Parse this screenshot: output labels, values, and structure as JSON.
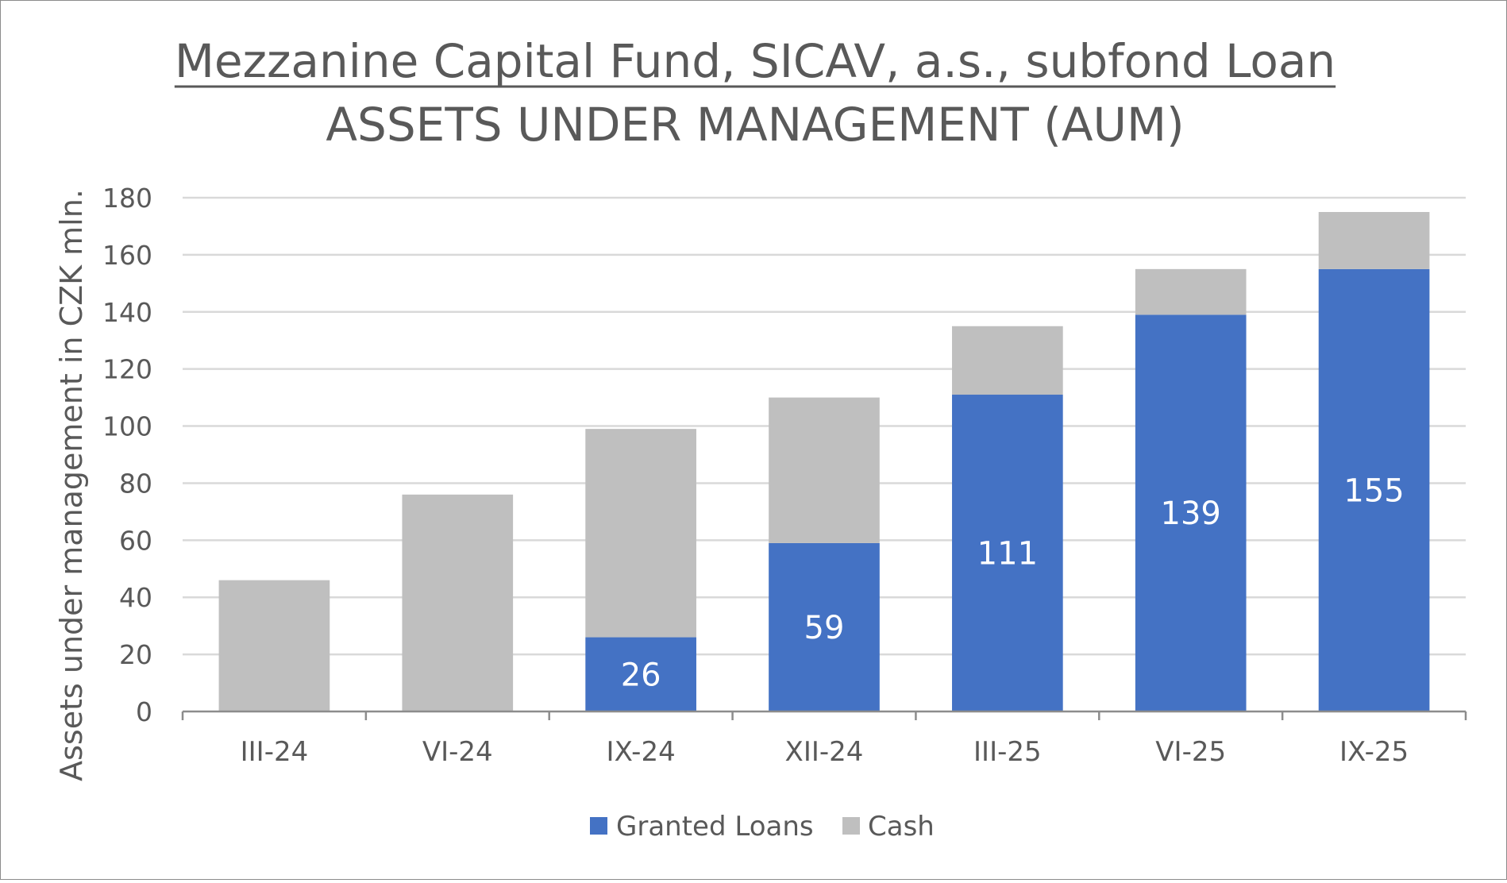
{
  "chart_data": {
    "type": "bar",
    "stacked": true,
    "title": "Mezzanine Capital Fund, SICAV, a.s., subfond Loan",
    "subtitle": "ASSETS UNDER MANAGEMENT (AUM)",
    "ylabel": "Assets under management in CZK mln.",
    "xlabel": "",
    "ylim": [
      0,
      180
    ],
    "yticks": [
      0,
      20,
      40,
      60,
      80,
      100,
      120,
      140,
      160,
      180
    ],
    "grid": true,
    "legend": "bottom",
    "categories": [
      "III-24",
      "VI-24",
      "IX-24",
      "XII-24",
      "III-25",
      "VI-25",
      "IX-25"
    ],
    "series": [
      {
        "name": "Granted Loans",
        "color": "#4472c4",
        "values": [
          0,
          0,
          26,
          59,
          111,
          139,
          155
        ],
        "labels": [
          "",
          "",
          "26",
          "59",
          "111",
          "139",
          "155"
        ]
      },
      {
        "name": "Cash",
        "color": "#bfbfbf",
        "values": [
          46,
          76,
          73,
          51,
          24,
          16,
          20
        ]
      }
    ]
  }
}
